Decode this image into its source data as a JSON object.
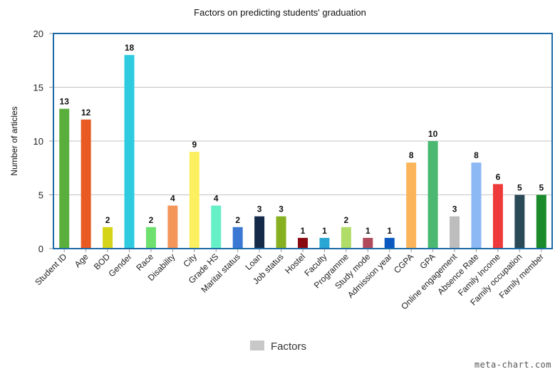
{
  "chart_data": {
    "type": "bar",
    "title": "Factors on predicting students' graduation",
    "xlabel": "",
    "ylabel": "Number of articles",
    "ylim": [
      0,
      20
    ],
    "yticks": [
      0,
      5,
      10,
      15,
      20
    ],
    "grid": true,
    "legend": {
      "label": "Factors",
      "color": "#c8c8c8",
      "position": "bottom-center"
    },
    "categories": [
      "Student ID",
      "Age",
      "BOD",
      "Gender",
      "Race",
      "Disability",
      "City",
      "Grade HS",
      "Marital status",
      "Loan",
      "Job status",
      "Hostel",
      "Faculty",
      "Programme",
      "Study mode",
      "Admission year",
      "CGPA",
      "GPA",
      "Online engagement",
      "Absence Rate",
      "Family Income",
      "Family occupation",
      "Family member"
    ],
    "values": [
      13,
      12,
      2,
      18,
      2,
      4,
      9,
      4,
      2,
      3,
      3,
      1,
      1,
      2,
      1,
      1,
      8,
      10,
      3,
      8,
      6,
      5,
      5
    ],
    "colors": [
      "#5aaf3c",
      "#e85a22",
      "#d6d418",
      "#2ecbe0",
      "#6ee06e",
      "#f4955a",
      "#fdf060",
      "#66f0c8",
      "#3a78d4",
      "#142a48",
      "#86b020",
      "#8a0a12",
      "#2aa6d4",
      "#b0dc68",
      "#b04a5a",
      "#0a58c0",
      "#fcb45a",
      "#4ab870",
      "#bdbdbd",
      "#8cb8f4",
      "#ee3a3a",
      "#2a4a58",
      "#1a8a2a"
    ],
    "frame_color": "#1a6aa8"
  },
  "footer": {
    "credit": "meta-chart.com"
  }
}
